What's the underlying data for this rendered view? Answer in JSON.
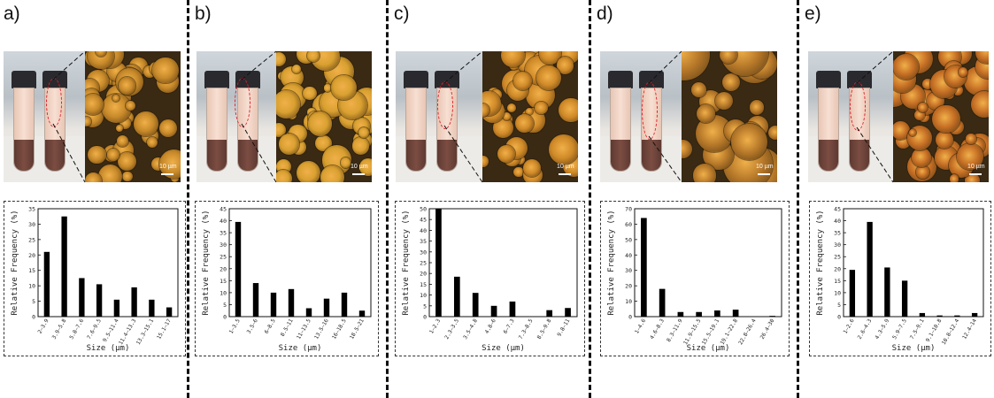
{
  "figure": {
    "panels": [
      {
        "label": "a)",
        "scale_label": "10 µm"
      },
      {
        "label": "b)",
        "scale_label": "10 µm"
      },
      {
        "label": "c)",
        "scale_label": "10 µm"
      },
      {
        "label": "d)",
        "scale_label": "10 µm"
      },
      {
        "label": "e)",
        "scale_label": "10 µm"
      }
    ]
  },
  "chart_data": [
    {
      "type": "bar",
      "categories": [
        "2–3.9",
        "3.9–5.8",
        "5.8–7.6",
        "7.6–9.5",
        "9.5–11.4",
        "11.4–13.3",
        "13.3–15.1",
        "15.1–17"
      ],
      "values": [
        21,
        32.5,
        12.5,
        10.5,
        5.5,
        9.5,
        5.5,
        3
      ],
      "xlabel": "Size (µm)",
      "ylabel": "Relative Frequency (%)",
      "ylim": [
        0,
        35
      ],
      "yticks": [
        0,
        5,
        10,
        15,
        20,
        25,
        30,
        35
      ]
    },
    {
      "type": "bar",
      "categories": [
        "1–3.5",
        "3.5–6",
        "6–8.5",
        "8.5–11",
        "11–13.5",
        "13.5–16",
        "16–18.5",
        "18.5–21"
      ],
      "values": [
        39.5,
        14,
        10,
        11.5,
        3.5,
        7.5,
        10,
        2.5
      ],
      "xlabel": "Size (µm)",
      "ylabel": "Relative Frequency (%)",
      "ylim": [
        0,
        45
      ],
      "yticks": [
        0,
        5,
        10,
        15,
        20,
        25,
        30,
        35,
        40,
        45
      ]
    },
    {
      "type": "bar",
      "categories": [
        "1–2.3",
        "2.3–3.5",
        "3.5–4.8",
        "4.8–6",
        "6–7.3",
        "7.3–8.5",
        "8.5–9.8",
        "9.8–11"
      ],
      "values": [
        50,
        18.5,
        11,
        5,
        7,
        0,
        3,
        4
      ],
      "xlabel": "Size (µm)",
      "ylabel": "Relative Frequency (%)",
      "ylim": [
        0,
        50
      ],
      "yticks": [
        0,
        5,
        10,
        15,
        20,
        25,
        30,
        35,
        40,
        45,
        50
      ]
    },
    {
      "type": "bar",
      "categories": [
        "1–4.6",
        "4.6–8.3",
        "8.3–11.9",
        "11.9–15.5",
        "15.5–19.1",
        "19.1–22.8",
        "22.8–26.4",
        "26.4–30"
      ],
      "values": [
        64,
        18,
        3,
        3,
        4,
        4.5,
        0,
        0.5
      ],
      "xlabel": "Size (µm)",
      "ylabel": "Relative Frequency (%)",
      "ylim": [
        0,
        70
      ],
      "yticks": [
        0,
        10,
        20,
        30,
        40,
        50,
        60,
        70
      ]
    },
    {
      "type": "bar",
      "categories": [
        "1–2.6",
        "2.6–4.3",
        "4.3–5.9",
        "5.9–7.5",
        "7.5–9.1",
        "9.1–10.8",
        "10.8–12.4",
        "12.4–14"
      ],
      "values": [
        19.5,
        39.5,
        20.5,
        15,
        1.5,
        0.5,
        0.5,
        1.5
      ],
      "xlabel": "Size (µm)",
      "ylabel": "Relative Frequency (%)",
      "ylim": [
        0,
        45
      ],
      "yticks": [
        0,
        5,
        10,
        15,
        20,
        25,
        30,
        35,
        40,
        45
      ]
    }
  ]
}
